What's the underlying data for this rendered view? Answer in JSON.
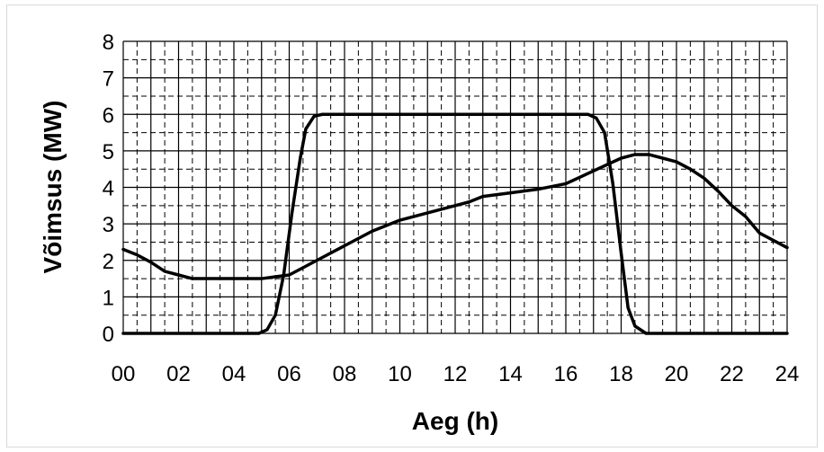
{
  "chart_data": {
    "type": "line",
    "xlabel": "Aeg (h)",
    "ylabel": "Võimsus (MW)",
    "xlim": [
      0,
      24
    ],
    "ylim": [
      0,
      8
    ],
    "x_ticks": [
      "00",
      "02",
      "04",
      "06",
      "08",
      "10",
      "12",
      "14",
      "16",
      "18",
      "20",
      "22",
      "24"
    ],
    "y_ticks": [
      "0",
      "1",
      "2",
      "3",
      "4",
      "5",
      "6",
      "7",
      "8"
    ],
    "grid": {
      "major": "solid",
      "minor": "dashed",
      "minor_x_step": 0.5,
      "minor_y_step": 0.5
    },
    "legend": "none",
    "series": [
      {
        "color": "#000000",
        "points": [
          [
            0,
            0
          ],
          [
            4.9,
            0
          ],
          [
            5.2,
            0.1
          ],
          [
            5.5,
            0.5
          ],
          [
            5.8,
            1.6
          ],
          [
            6.1,
            3.3
          ],
          [
            6.4,
            4.8
          ],
          [
            6.6,
            5.6
          ],
          [
            6.9,
            5.95
          ],
          [
            7.2,
            6
          ],
          [
            16.8,
            6
          ],
          [
            17.1,
            5.9
          ],
          [
            17.4,
            5.5
          ],
          [
            17.7,
            4.1
          ],
          [
            18.0,
            2.2
          ],
          [
            18.25,
            0.7
          ],
          [
            18.5,
            0.2
          ],
          [
            18.9,
            0
          ],
          [
            24,
            0
          ]
        ]
      },
      {
        "color": "#000000",
        "points": [
          [
            0,
            2.3
          ],
          [
            0.5,
            2.15
          ],
          [
            1.0,
            1.95
          ],
          [
            1.5,
            1.7
          ],
          [
            2.0,
            1.6
          ],
          [
            2.5,
            1.5
          ],
          [
            3.0,
            1.5
          ],
          [
            4.0,
            1.5
          ],
          [
            5.0,
            1.5
          ],
          [
            5.5,
            1.55
          ],
          [
            6.0,
            1.6
          ],
          [
            6.5,
            1.8
          ],
          [
            7.0,
            2.0
          ],
          [
            8.0,
            2.4
          ],
          [
            9.0,
            2.8
          ],
          [
            10.0,
            3.1
          ],
          [
            11.0,
            3.3
          ],
          [
            12.0,
            3.5
          ],
          [
            12.5,
            3.6
          ],
          [
            13.0,
            3.75
          ],
          [
            14.0,
            3.85
          ],
          [
            15.0,
            3.95
          ],
          [
            16.0,
            4.1
          ],
          [
            17.0,
            4.45
          ],
          [
            18.0,
            4.8
          ],
          [
            18.5,
            4.9
          ],
          [
            19.0,
            4.9
          ],
          [
            19.5,
            4.8
          ],
          [
            20.0,
            4.7
          ],
          [
            20.5,
            4.5
          ],
          [
            21.0,
            4.25
          ],
          [
            21.5,
            3.9
          ],
          [
            22.0,
            3.5
          ],
          [
            22.5,
            3.2
          ],
          [
            23.0,
            2.75
          ],
          [
            23.5,
            2.55
          ],
          [
            24.0,
            2.35
          ]
        ]
      }
    ]
  }
}
